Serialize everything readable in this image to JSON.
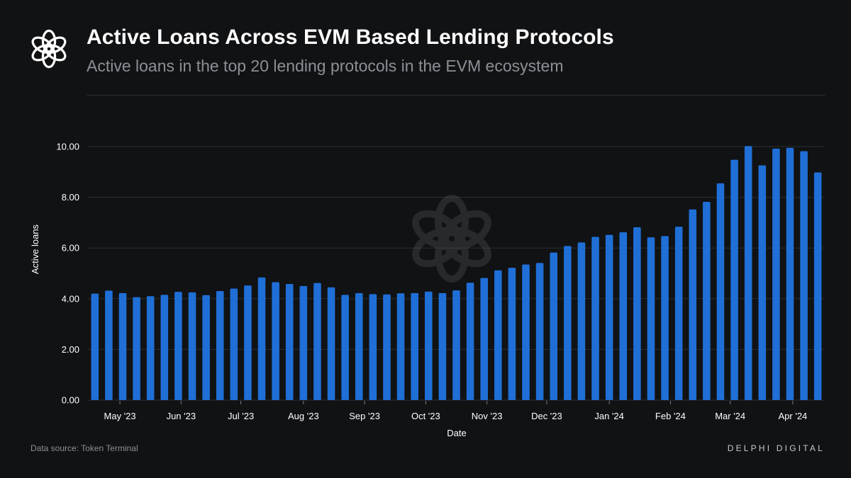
{
  "header": {
    "title": "Active Loans Across EVM Based Lending Protocols",
    "subtitle": "Active loans in the top 20 lending protocols in the EVM ecosystem"
  },
  "footer": {
    "source": "Data source: Token Terminal",
    "brand": "DELPHI DIGITAL"
  },
  "colors": {
    "background": "#111214",
    "bar": "#1f6fd6",
    "grid": "#2c2e33",
    "text": "#ffffff",
    "muted": "#8c9096"
  },
  "icons": {
    "logo": "delphi-knot-icon",
    "watermark": "delphi-knot-watermark-icon"
  },
  "chart_data": {
    "type": "bar",
    "title": "Active Loans Across EVM Based Lending Protocols",
    "xlabel": "Date",
    "ylabel": "Active loans",
    "ylim": [
      0,
      10.6
    ],
    "yticks": [
      "0.00",
      "2.00",
      "4.00",
      "6.00",
      "8.00",
      "10.00"
    ],
    "ytick_values": [
      0,
      2,
      4,
      6,
      8,
      10
    ],
    "grid": true,
    "xtick_labels": [
      "May '23",
      "Jun '23",
      "Jul '23",
      "Aug '23",
      "Sep '23",
      "Oct '23",
      "Nov '23",
      "Dec '23",
      "Jan '24",
      "Feb '24",
      "Mar '24",
      "Apr '24"
    ],
    "xtick_positions": [
      2.3,
      6.7,
      11.0,
      15.5,
      19.9,
      24.3,
      28.7,
      33.0,
      37.5,
      41.9,
      46.2,
      50.7
    ],
    "values": [
      4.2,
      4.32,
      4.22,
      4.06,
      4.1,
      4.15,
      4.27,
      4.25,
      4.14,
      4.3,
      4.4,
      4.52,
      4.84,
      4.65,
      4.58,
      4.5,
      4.62,
      4.45,
      4.15,
      4.22,
      4.18,
      4.17,
      4.21,
      4.22,
      4.28,
      4.22,
      4.33,
      4.63,
      4.82,
      5.12,
      5.22,
      5.35,
      5.41,
      5.82,
      6.08,
      6.22,
      6.44,
      6.52,
      6.62,
      6.82,
      6.42,
      6.47,
      6.84,
      7.52,
      7.82,
      8.55,
      9.48,
      10.02,
      9.26,
      9.92,
      9.95,
      9.82,
      8.98
    ]
  }
}
